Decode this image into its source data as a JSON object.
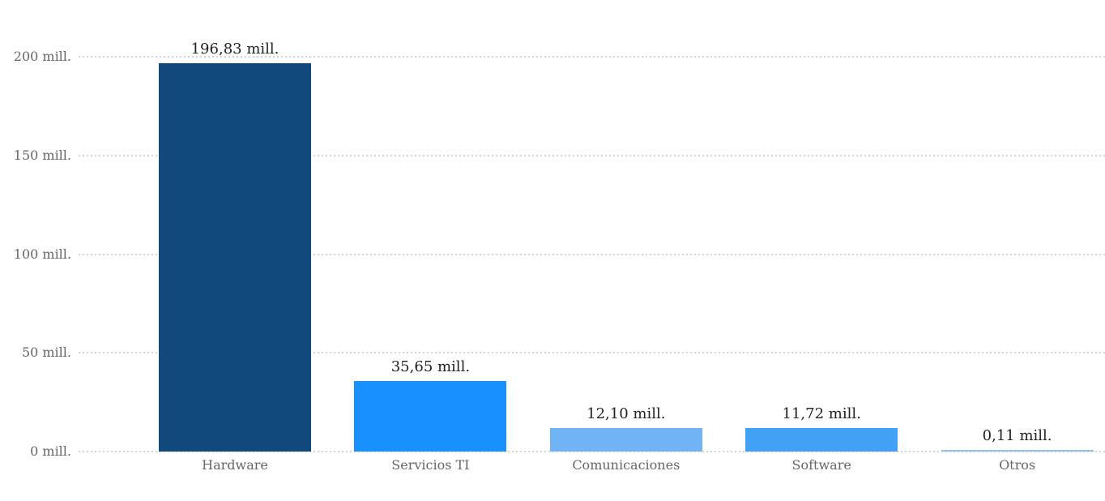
{
  "chart_data": {
    "type": "bar",
    "title": "",
    "xlabel": "",
    "ylabel": "",
    "categories": [
      "Hardware",
      "Servicios TI",
      "Comunicaciones",
      "Software",
      "Otros"
    ],
    "values": [
      196.83,
      35.65,
      12.1,
      11.72,
      0.11
    ],
    "value_labels": [
      "196,83 mill.",
      "35,65 mill.",
      "12,10 mill.",
      "11,72 mill.",
      "0,11 mill."
    ],
    "bar_colors": [
      "#11497d",
      "#1990ff",
      "#70b4f6",
      "#42a0f5",
      "#8fc0ef"
    ],
    "ylim": [
      0,
      200
    ],
    "y_ticks": [
      {
        "value": 0,
        "label": "0 mill."
      },
      {
        "value": 50,
        "label": "50 mill."
      },
      {
        "value": 100,
        "label": "100 mill."
      },
      {
        "value": 150,
        "label": "150 mill."
      },
      {
        "value": 200,
        "label": "200 mill."
      }
    ],
    "grid": "horizontal-dotted",
    "legend": "none",
    "colors": {
      "background": "#ffffff",
      "value_label": "#222222",
      "axis_label": "#666666",
      "gridline": "#d4d4d4"
    }
  }
}
